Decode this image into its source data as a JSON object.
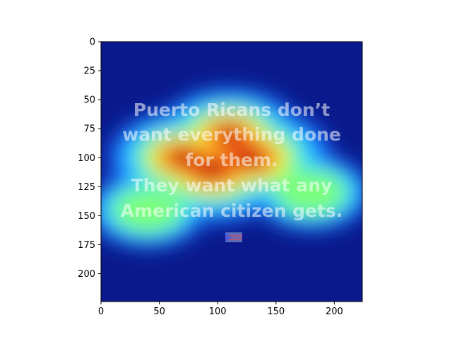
{
  "chart_data": {
    "type": "heatmap",
    "title": "",
    "xlabel": "",
    "ylabel": "",
    "xlim": [
      0,
      224
    ],
    "ylim": [
      224,
      0
    ],
    "x_ticks": [
      0,
      50,
      100,
      150,
      200
    ],
    "y_ticks": [
      0,
      25,
      50,
      75,
      100,
      125,
      150,
      175,
      200
    ],
    "colormap": "jet",
    "grid": false,
    "image_text_lines": [
      "Puerto Ricans don’t",
      "want everything done",
      "for them.",
      "They want what any",
      "American citizen gets."
    ],
    "hotspots": [
      {
        "x": 95,
        "y": 110,
        "intensity": 1.0
      },
      {
        "x": 128,
        "y": 100,
        "intensity": 0.95
      },
      {
        "x": 70,
        "y": 100,
        "intensity": 0.75
      },
      {
        "x": 110,
        "y": 80,
        "intensity": 0.7
      },
      {
        "x": 40,
        "y": 145,
        "intensity": 0.35
      },
      {
        "x": 180,
        "y": 130,
        "intensity": 0.35
      }
    ]
  }
}
